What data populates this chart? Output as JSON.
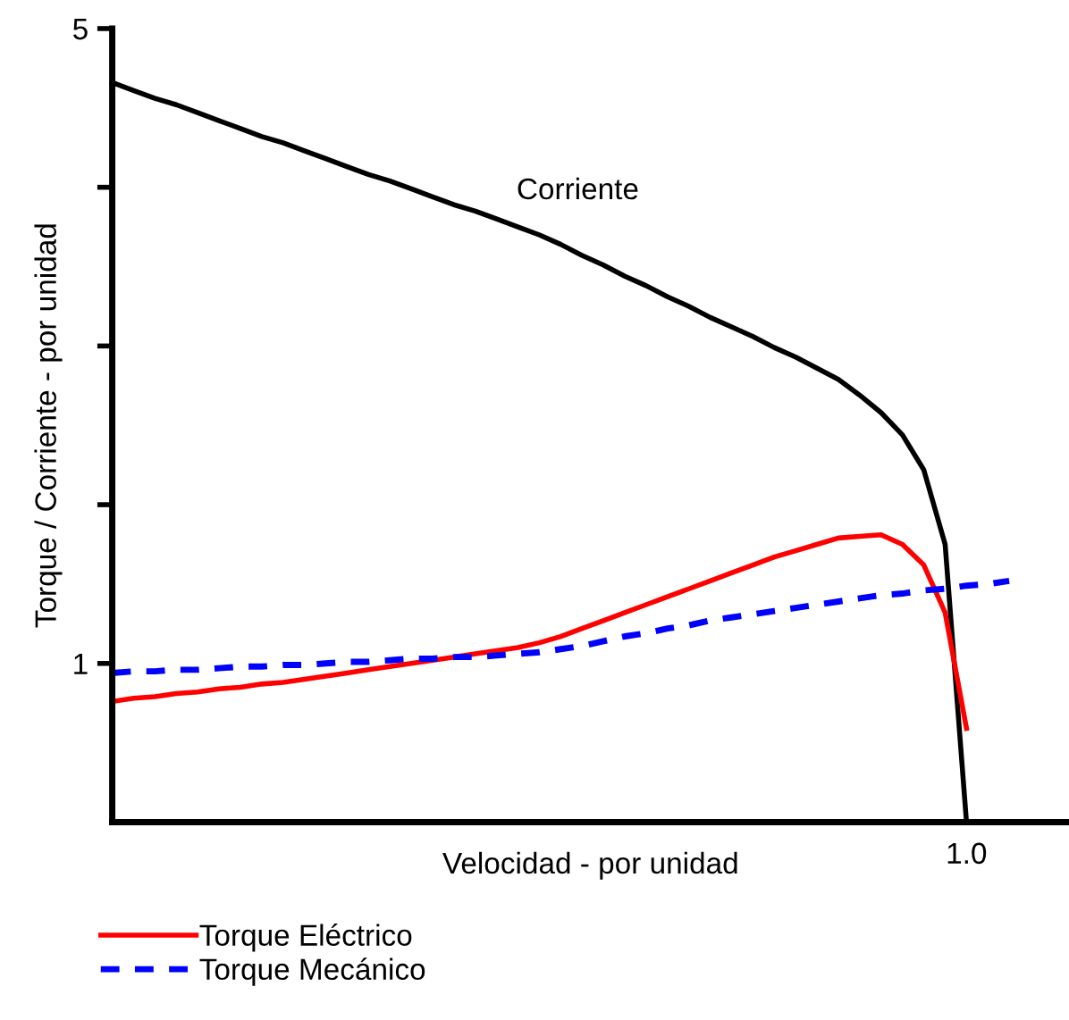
{
  "chart_data": {
    "type": "line",
    "xlabel": "Velocidad - por unidad",
    "ylabel": "Torque / Corriente - por unidad",
    "categories": [
      null,
      null,
      null,
      null,
      null,
      null,
      null,
      null,
      null,
      null,
      null,
      null,
      null,
      null,
      null,
      null,
      null,
      null,
      null,
      null,
      null,
      null,
      null,
      null,
      null,
      null,
      null,
      null,
      null,
      null,
      null,
      null,
      null,
      null,
      null,
      null,
      null,
      null,
      null,
      null,
      null,
      null,
      null,
      null,
      null
    ],
    "ylim": [
      0,
      5
    ],
    "yticks": [
      {
        "value": 1,
        "label": "1"
      },
      {
        "value": 2,
        "label": null
      },
      {
        "value": 3,
        "label": null
      },
      {
        "value": 4,
        "label": null
      },
      {
        "value": 5,
        "label": "5"
      }
    ],
    "series": [
      {
        "color": "#000000",
        "line_style": "solid",
        "values": [
          4.66,
          4.61,
          4.56,
          4.52,
          4.47,
          4.42,
          4.37,
          4.32,
          4.28,
          4.23,
          4.18,
          4.13,
          4.08,
          4.04,
          3.99,
          3.94,
          3.89,
          3.85,
          3.8,
          3.75,
          3.7,
          3.64,
          3.57,
          3.51,
          3.44,
          3.38,
          3.31,
          3.25,
          3.18,
          3.12,
          3.06,
          2.99,
          2.93,
          2.86,
          2.79,
          2.69,
          2.58,
          2.44,
          2.22,
          1.75,
          0,
          null,
          null,
          null,
          null
        ]
      },
      {
        "name": "Torque Eléctrico",
        "color": "#ff0000",
        "line_style": "solid",
        "values": [
          0.76,
          0.78,
          0.79,
          0.81,
          0.82,
          0.84,
          0.85,
          0.87,
          0.88,
          0.9,
          0.92,
          0.94,
          0.96,
          0.98,
          1.0,
          1.02,
          1.04,
          1.06,
          1.08,
          1.1,
          1.13,
          1.17,
          1.22,
          1.27,
          1.32,
          1.37,
          1.42,
          1.47,
          1.52,
          1.57,
          1.62,
          1.67,
          1.71,
          1.75,
          1.79,
          1.8,
          1.81,
          1.75,
          1.62,
          1.32,
          0.59,
          null,
          null,
          null,
          null
        ]
      },
      {
        "name": "Torque Mecánico",
        "color": "#0000ff",
        "line_style": "dashed",
        "values": [
          0.94,
          0.95,
          0.95,
          0.96,
          0.96,
          0.97,
          0.98,
          0.98,
          0.99,
          0.99,
          1.0,
          1.01,
          1.01,
          1.02,
          1.03,
          1.03,
          1.04,
          1.04,
          1.05,
          1.06,
          1.07,
          1.09,
          1.11,
          1.14,
          1.17,
          1.19,
          1.22,
          1.24,
          1.27,
          1.29,
          1.31,
          1.33,
          1.35,
          1.37,
          1.39,
          1.41,
          1.43,
          1.44,
          1.46,
          1.47,
          1.49,
          1.5,
          1.52,
          null,
          null
        ]
      }
    ],
    "annotations": [
      "Corriente",
      "1.0"
    ],
    "legend": "bottom left",
    "grid": false,
    "marker": "none"
  }
}
